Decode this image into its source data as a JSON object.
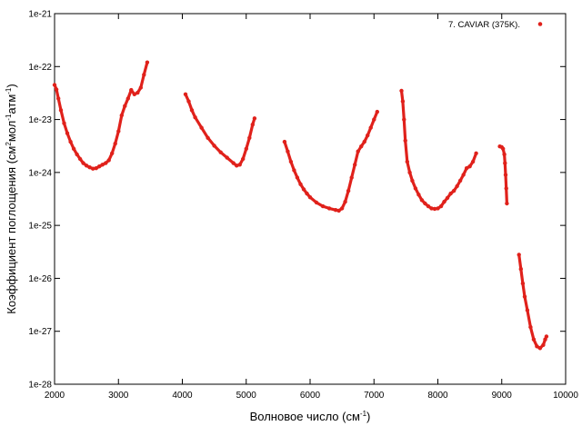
{
  "chart_data": {
    "type": "scatter",
    "title": "",
    "xlabel": "Волновое число (см",
    "xlabel_sup": "-1",
    "xlabel_end": ")",
    "ylabel_parts": [
      "Коэффициент поглощения (см",
      "2",
      "мол",
      "-1",
      "атм",
      "-1",
      ")"
    ],
    "xlim": [
      2000,
      10000
    ],
    "ylim": [
      1e-28,
      1e-21
    ],
    "yscale": "log",
    "grid": false,
    "legend_position": "top-right",
    "x_ticks": [
      2000,
      3000,
      4000,
      5000,
      6000,
      7000,
      8000,
      9000,
      10000
    ],
    "x_tick_labels": [
      "2000",
      "3000",
      "4000",
      "5000",
      "6000",
      "7000",
      "8000",
      "9000",
      "10000"
    ],
    "y_ticks": [
      1e-28,
      1e-27,
      1e-26,
      1e-25,
      1e-24,
      1e-23,
      1e-22,
      1e-21
    ],
    "y_tick_labels": [
      "1e-28",
      "1e-27",
      "1e-26",
      "1e-25",
      "1e-24",
      "1e-23",
      "1e-22",
      "1e-21"
    ],
    "series": [
      {
        "name": "7. CAVIAR (375K).",
        "color": "#e0211b",
        "points": [
          [
            2000,
            4.5e-23
          ],
          [
            2030,
            3.7e-23
          ],
          [
            2060,
            2.5e-23
          ],
          [
            2100,
            1.5e-23
          ],
          [
            2150,
            8.5e-24
          ],
          [
            2200,
            5.5e-24
          ],
          [
            2250,
            3.8e-24
          ],
          [
            2300,
            2.8e-24
          ],
          [
            2350,
            2.2e-24
          ],
          [
            2400,
            1.8e-24
          ],
          [
            2450,
            1.5e-24
          ],
          [
            2500,
            1.35e-24
          ],
          [
            2550,
            1.25e-24
          ],
          [
            2600,
            1.18e-24
          ],
          [
            2650,
            1.2e-24
          ],
          [
            2700,
            1.3e-24
          ],
          [
            2750,
            1.4e-24
          ],
          [
            2800,
            1.5e-24
          ],
          [
            2850,
            1.7e-24
          ],
          [
            2900,
            2.3e-24
          ],
          [
            2950,
            3.5e-24
          ],
          [
            3000,
            6e-24
          ],
          [
            3050,
            1.2e-23
          ],
          [
            3100,
            1.8e-23
          ],
          [
            3150,
            2.5e-23
          ],
          [
            3200,
            3.6e-23
          ],
          [
            3250,
            3e-23
          ],
          [
            3300,
            3.2e-23
          ],
          [
            3350,
            4e-23
          ],
          [
            3400,
            7e-23
          ],
          [
            3450,
            1.2e-22
          ],
          [
            4050,
            3e-23
          ],
          [
            4100,
            2.2e-23
          ],
          [
            4150,
            1.5e-23
          ],
          [
            4200,
            1.1e-23
          ],
          [
            4300,
            7e-24
          ],
          [
            4400,
            4.5e-24
          ],
          [
            4500,
            3.2e-24
          ],
          [
            4600,
            2.4e-24
          ],
          [
            4700,
            1.9e-24
          ],
          [
            4800,
            1.5e-24
          ],
          [
            4850,
            1.35e-24
          ],
          [
            4900,
            1.4e-24
          ],
          [
            4950,
            1.8e-24
          ],
          [
            5000,
            2.8e-24
          ],
          [
            5050,
            4.5e-24
          ],
          [
            5100,
            8e-24
          ],
          [
            5130,
            1.05e-23
          ],
          [
            5600,
            3.8e-24
          ],
          [
            5650,
            2.5e-24
          ],
          [
            5700,
            1.6e-24
          ],
          [
            5750,
            1.1e-24
          ],
          [
            5800,
            8e-25
          ],
          [
            5850,
            6e-25
          ],
          [
            5900,
            4.8e-25
          ],
          [
            5950,
            4e-25
          ],
          [
            6000,
            3.4e-25
          ],
          [
            6100,
            2.7e-25
          ],
          [
            6200,
            2.3e-25
          ],
          [
            6300,
            2.1e-25
          ],
          [
            6400,
            1.95e-25
          ],
          [
            6450,
            1.9e-25
          ],
          [
            6500,
            2.1e-25
          ],
          [
            6550,
            2.8e-25
          ],
          [
            6600,
            4.5e-25
          ],
          [
            6650,
            8e-25
          ],
          [
            6700,
            1.4e-24
          ],
          [
            6750,
            2.5e-24
          ],
          [
            6800,
            3.1e-24
          ],
          [
            6850,
            3.8e-24
          ],
          [
            6900,
            5e-24
          ],
          [
            6950,
            7e-24
          ],
          [
            7000,
            1e-23
          ],
          [
            7050,
            1.4e-23
          ],
          [
            7430,
            3.5e-23
          ],
          [
            7450,
            2.2e-23
          ],
          [
            7470,
            1e-23
          ],
          [
            7490,
            4e-24
          ],
          [
            7520,
            1.6e-24
          ],
          [
            7560,
            1e-24
          ],
          [
            7600,
            7e-25
          ],
          [
            7650,
            5e-25
          ],
          [
            7700,
            3.8e-25
          ],
          [
            7750,
            3e-25
          ],
          [
            7800,
            2.6e-25
          ],
          [
            7850,
            2.3e-25
          ],
          [
            7900,
            2.1e-25
          ],
          [
            7950,
            2.05e-25
          ],
          [
            8000,
            2.1e-25
          ],
          [
            8050,
            2.3e-25
          ],
          [
            8100,
            2.8e-25
          ],
          [
            8150,
            3.3e-25
          ],
          [
            8200,
            4e-25
          ],
          [
            8250,
            4.5e-25
          ],
          [
            8300,
            5.5e-25
          ],
          [
            8350,
            7e-25
          ],
          [
            8400,
            9e-25
          ],
          [
            8450,
            1.2e-24
          ],
          [
            8500,
            1.3e-24
          ],
          [
            8550,
            1.6e-24
          ],
          [
            8600,
            2.3e-24
          ],
          [
            8970,
            3.1e-24
          ],
          [
            9000,
            3e-24
          ],
          [
            9020,
            2.8e-24
          ],
          [
            9040,
            2.2e-24
          ],
          [
            9050,
            1.5e-24
          ],
          [
            9060,
            9e-25
          ],
          [
            9070,
            5e-25
          ],
          [
            9080,
            2.6e-25
          ],
          [
            9270,
            2.8e-26
          ],
          [
            9300,
            1.5e-26
          ],
          [
            9330,
            8e-27
          ],
          [
            9360,
            4.5e-27
          ],
          [
            9400,
            2.5e-27
          ],
          [
            9450,
            1.2e-27
          ],
          [
            9500,
            7e-28
          ],
          [
            9550,
            5.2e-28
          ],
          [
            9600,
            4.8e-28
          ],
          [
            9650,
            5.5e-28
          ],
          [
            9680,
            7e-28
          ],
          [
            9700,
            8e-28
          ]
        ]
      }
    ]
  }
}
